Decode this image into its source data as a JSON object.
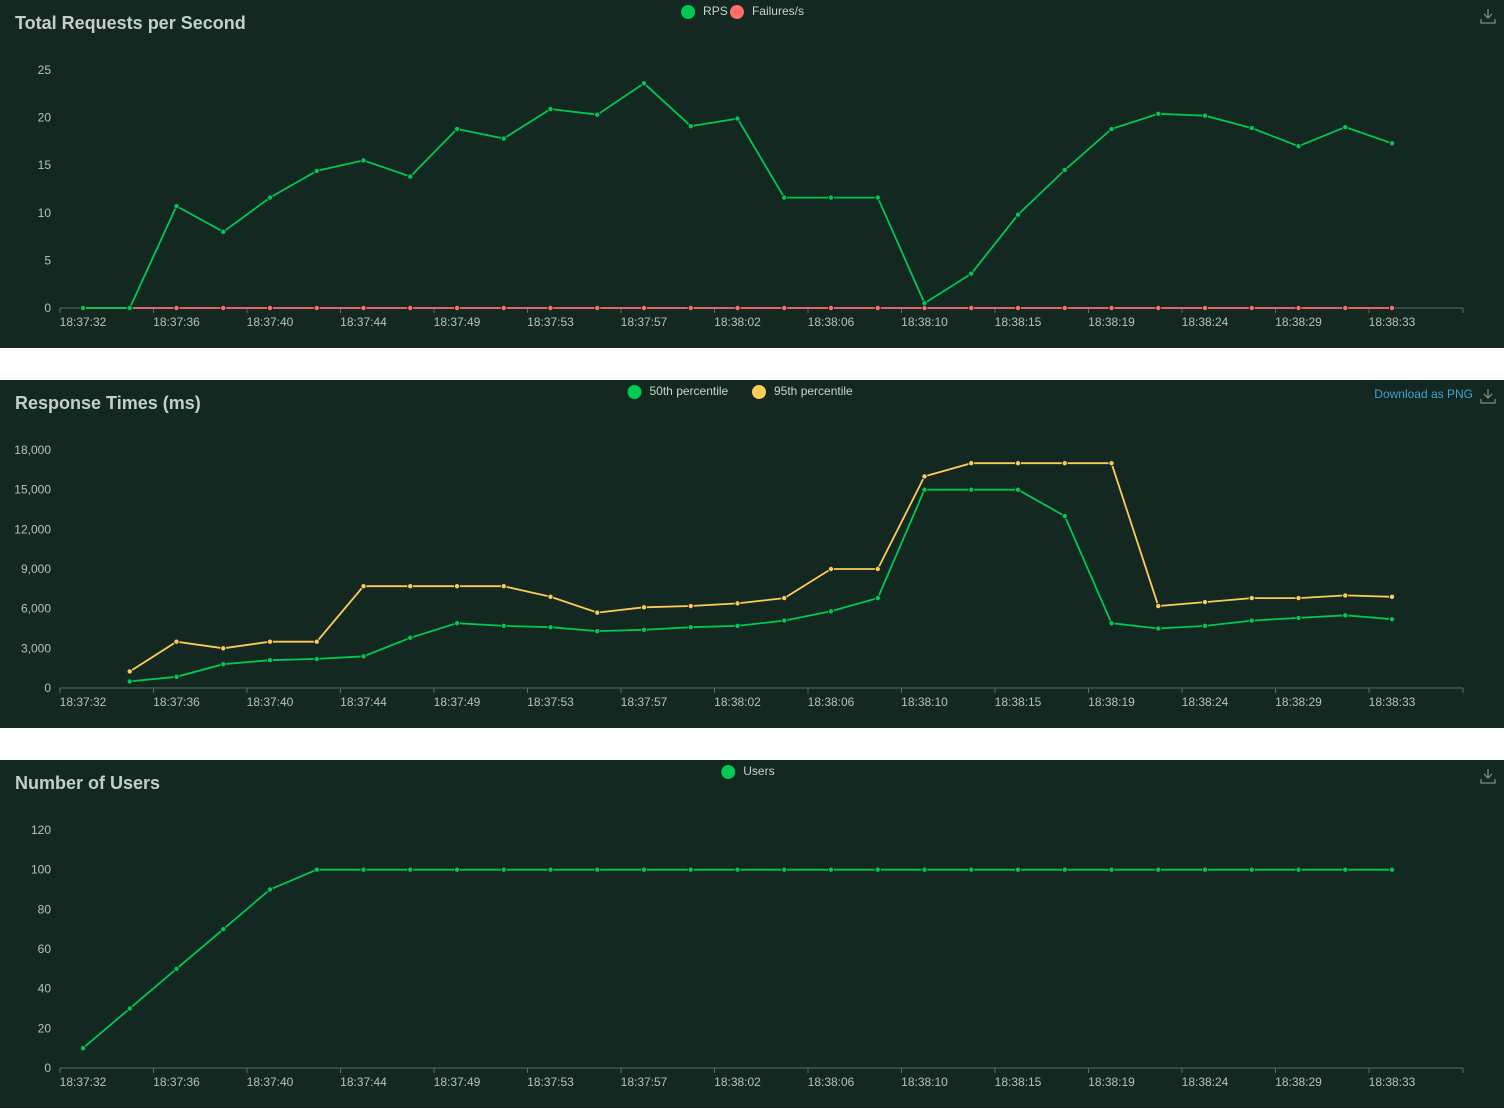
{
  "download_label": "Download as PNG",
  "colors": {
    "background": "#132820",
    "axis": "#5a6b64",
    "green": "#00c853",
    "red": "#ff6d6d",
    "yellow": "#ffca5a"
  },
  "icons": {
    "download": "download-icon"
  },
  "time_ticks": [
    "18:37:32",
    "18:37:36",
    "18:37:40",
    "18:37:44",
    "18:37:49",
    "18:37:53",
    "18:37:57",
    "18:38:02",
    "18:38:06",
    "18:38:10",
    "18:38:15",
    "18:38:19",
    "18:38:24",
    "18:38:29",
    "18:38:33"
  ],
  "chart_data": [
    {
      "type": "line",
      "title": "Total Requests per Second",
      "x": [
        "18:37:32",
        "18:37:34",
        "18:37:36",
        "18:37:38",
        "18:37:40",
        "18:37:42",
        "18:37:44",
        "18:37:46",
        "18:37:49",
        "18:37:51",
        "18:37:53",
        "18:37:55",
        "18:37:57",
        "18:38:00",
        "18:38:02",
        "18:38:04",
        "18:38:06",
        "18:38:08",
        "18:38:10",
        "18:38:13",
        "18:38:15",
        "18:38:17",
        "18:38:19",
        "18:38:22",
        "18:38:24",
        "18:38:26",
        "18:38:29",
        "18:38:31",
        "18:38:33"
      ],
      "ylim": [
        0,
        25
      ],
      "yticks": [
        "0",
        "5",
        "10",
        "15",
        "20",
        "25"
      ],
      "series": [
        {
          "name": "RPS",
          "color": "#00c853",
          "values": [
            0,
            0,
            10.7,
            8,
            11.6,
            14.4,
            15.5,
            13.8,
            18.8,
            17.8,
            20.9,
            20.3,
            23.6,
            19.1,
            19.9,
            11.6,
            11.6,
            11.6,
            0.5,
            3.6,
            9.8,
            14.5,
            18.8,
            20.4,
            20.2,
            18.9,
            17,
            19,
            17.3
          ]
        },
        {
          "name": "Failures/s",
          "color": "#ff6d6d",
          "values": [
            0,
            0,
            0,
            0,
            0,
            0,
            0,
            0,
            0,
            0,
            0,
            0,
            0,
            0,
            0,
            0,
            0,
            0,
            0,
            0,
            0,
            0,
            0,
            0,
            0,
            0,
            0,
            0,
            0
          ]
        }
      ],
      "legend_position": "top-center",
      "grid": false
    },
    {
      "type": "line",
      "title": "Response Times (ms)",
      "x": [
        "18:37:32",
        "18:37:34",
        "18:37:36",
        "18:37:38",
        "18:37:40",
        "18:37:42",
        "18:37:44",
        "18:37:46",
        "18:37:49",
        "18:37:51",
        "18:37:53",
        "18:37:55",
        "18:37:57",
        "18:38:00",
        "18:38:02",
        "18:38:04",
        "18:38:06",
        "18:38:08",
        "18:38:10",
        "18:38:13",
        "18:38:15",
        "18:38:17",
        "18:38:19",
        "18:38:22",
        "18:38:24",
        "18:38:26",
        "18:38:29",
        "18:38:31",
        "18:38:33"
      ],
      "ylim": [
        0,
        18000
      ],
      "yticks": [
        "0",
        "3,000",
        "6,000",
        "9,000",
        "12,000",
        "15,000",
        "18,000"
      ],
      "series": [
        {
          "name": "50th percentile",
          "color": "#00c853",
          "values": [
            null,
            500,
            850,
            1800,
            2100,
            2200,
            2400,
            3800,
            4900,
            4700,
            4600,
            4300,
            4400,
            4600,
            4700,
            5100,
            5800,
            6800,
            15000,
            15000,
            15000,
            13000,
            4900,
            4500,
            4700,
            5100,
            5300,
            5500,
            5200
          ]
        },
        {
          "name": "95th percentile",
          "color": "#ffca5a",
          "values": [
            null,
            1250,
            3500,
            3000,
            3500,
            3500,
            7700,
            7700,
            7700,
            7700,
            6900,
            5700,
            6100,
            6200,
            6400,
            6800,
            9000,
            9000,
            16000,
            17000,
            17000,
            17000,
            17000,
            6200,
            6500,
            6800,
            6800,
            7000,
            6900
          ]
        }
      ],
      "legend_position": "top-center",
      "grid": false
    },
    {
      "type": "line",
      "title": "Number of Users",
      "x": [
        "18:37:32",
        "18:37:34",
        "18:37:36",
        "18:37:38",
        "18:37:40",
        "18:37:42",
        "18:37:44",
        "18:37:46",
        "18:37:49",
        "18:37:51",
        "18:37:53",
        "18:37:55",
        "18:37:57",
        "18:38:00",
        "18:38:02",
        "18:38:04",
        "18:38:06",
        "18:38:08",
        "18:38:10",
        "18:38:13",
        "18:38:15",
        "18:38:17",
        "18:38:19",
        "18:38:22",
        "18:38:24",
        "18:38:26",
        "18:38:29",
        "18:38:31",
        "18:38:33"
      ],
      "ylim": [
        0,
        120
      ],
      "yticks": [
        "0",
        "20",
        "40",
        "60",
        "80",
        "100",
        "120"
      ],
      "series": [
        {
          "name": "Users",
          "color": "#00c853",
          "values": [
            10,
            30,
            50,
            70,
            90,
            100,
            100,
            100,
            100,
            100,
            100,
            100,
            100,
            100,
            100,
            100,
            100,
            100,
            100,
            100,
            100,
            100,
            100,
            100,
            100,
            100,
            100,
            100,
            100
          ]
        }
      ],
      "legend_position": "top-center",
      "grid": false
    }
  ]
}
